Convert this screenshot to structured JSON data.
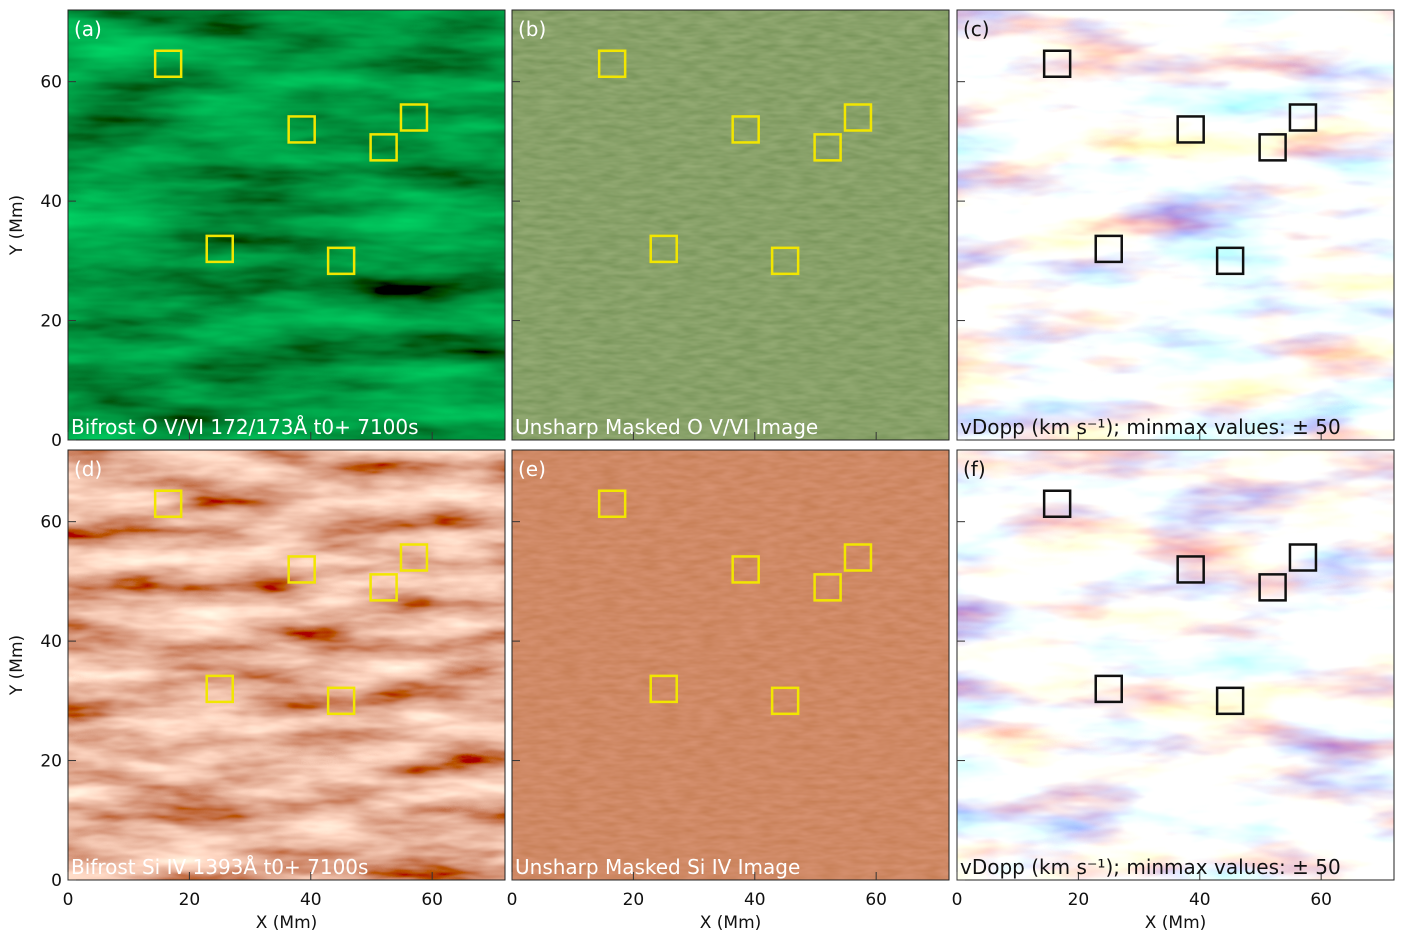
{
  "panels": [
    {
      "label": "(a)",
      "caption": "Bifrost O V/VI 172/173Å  t0+ 7100s",
      "box_color": "#f2e600",
      "text_color": "#ffffff"
    },
    {
      "label": "(b)",
      "caption": "Unsharp Masked O V/VI Image",
      "box_color": "#f2e600",
      "text_color": "#ffffff"
    },
    {
      "label": "(c)",
      "caption": "vDopp (km s⁻¹); minmax values: ± 50",
      "box_color": "#111111",
      "text_color": "#111111"
    },
    {
      "label": "(d)",
      "caption": "Bifrost Si IV 1393Å  t0+ 7100s",
      "box_color": "#f2e600",
      "text_color": "#ffffff"
    },
    {
      "label": "(e)",
      "caption": "Unsharp Masked Si IV Image",
      "box_color": "#f2e600",
      "text_color": "#ffffff"
    },
    {
      "label": "(f)",
      "caption": "vDopp (km s⁻¹); minmax values: ± 50",
      "box_color": "#111111",
      "text_color": "#111111"
    }
  ],
  "x_axis": {
    "label": "X (Mm)",
    "range": [
      0,
      72
    ],
    "ticks": [
      0,
      20,
      40,
      60
    ]
  },
  "y_axis": {
    "label": "Y (Mm)",
    "range": [
      0,
      72
    ],
    "ticks": [
      0,
      20,
      40,
      60
    ]
  },
  "regions": [
    {
      "x": 16.5,
      "y": 63
    },
    {
      "x": 38.5,
      "y": 52
    },
    {
      "x": 57,
      "y": 54
    },
    {
      "x": 52,
      "y": 49
    },
    {
      "x": 25,
      "y": 32
    },
    {
      "x": 45,
      "y": 30
    }
  ]
}
